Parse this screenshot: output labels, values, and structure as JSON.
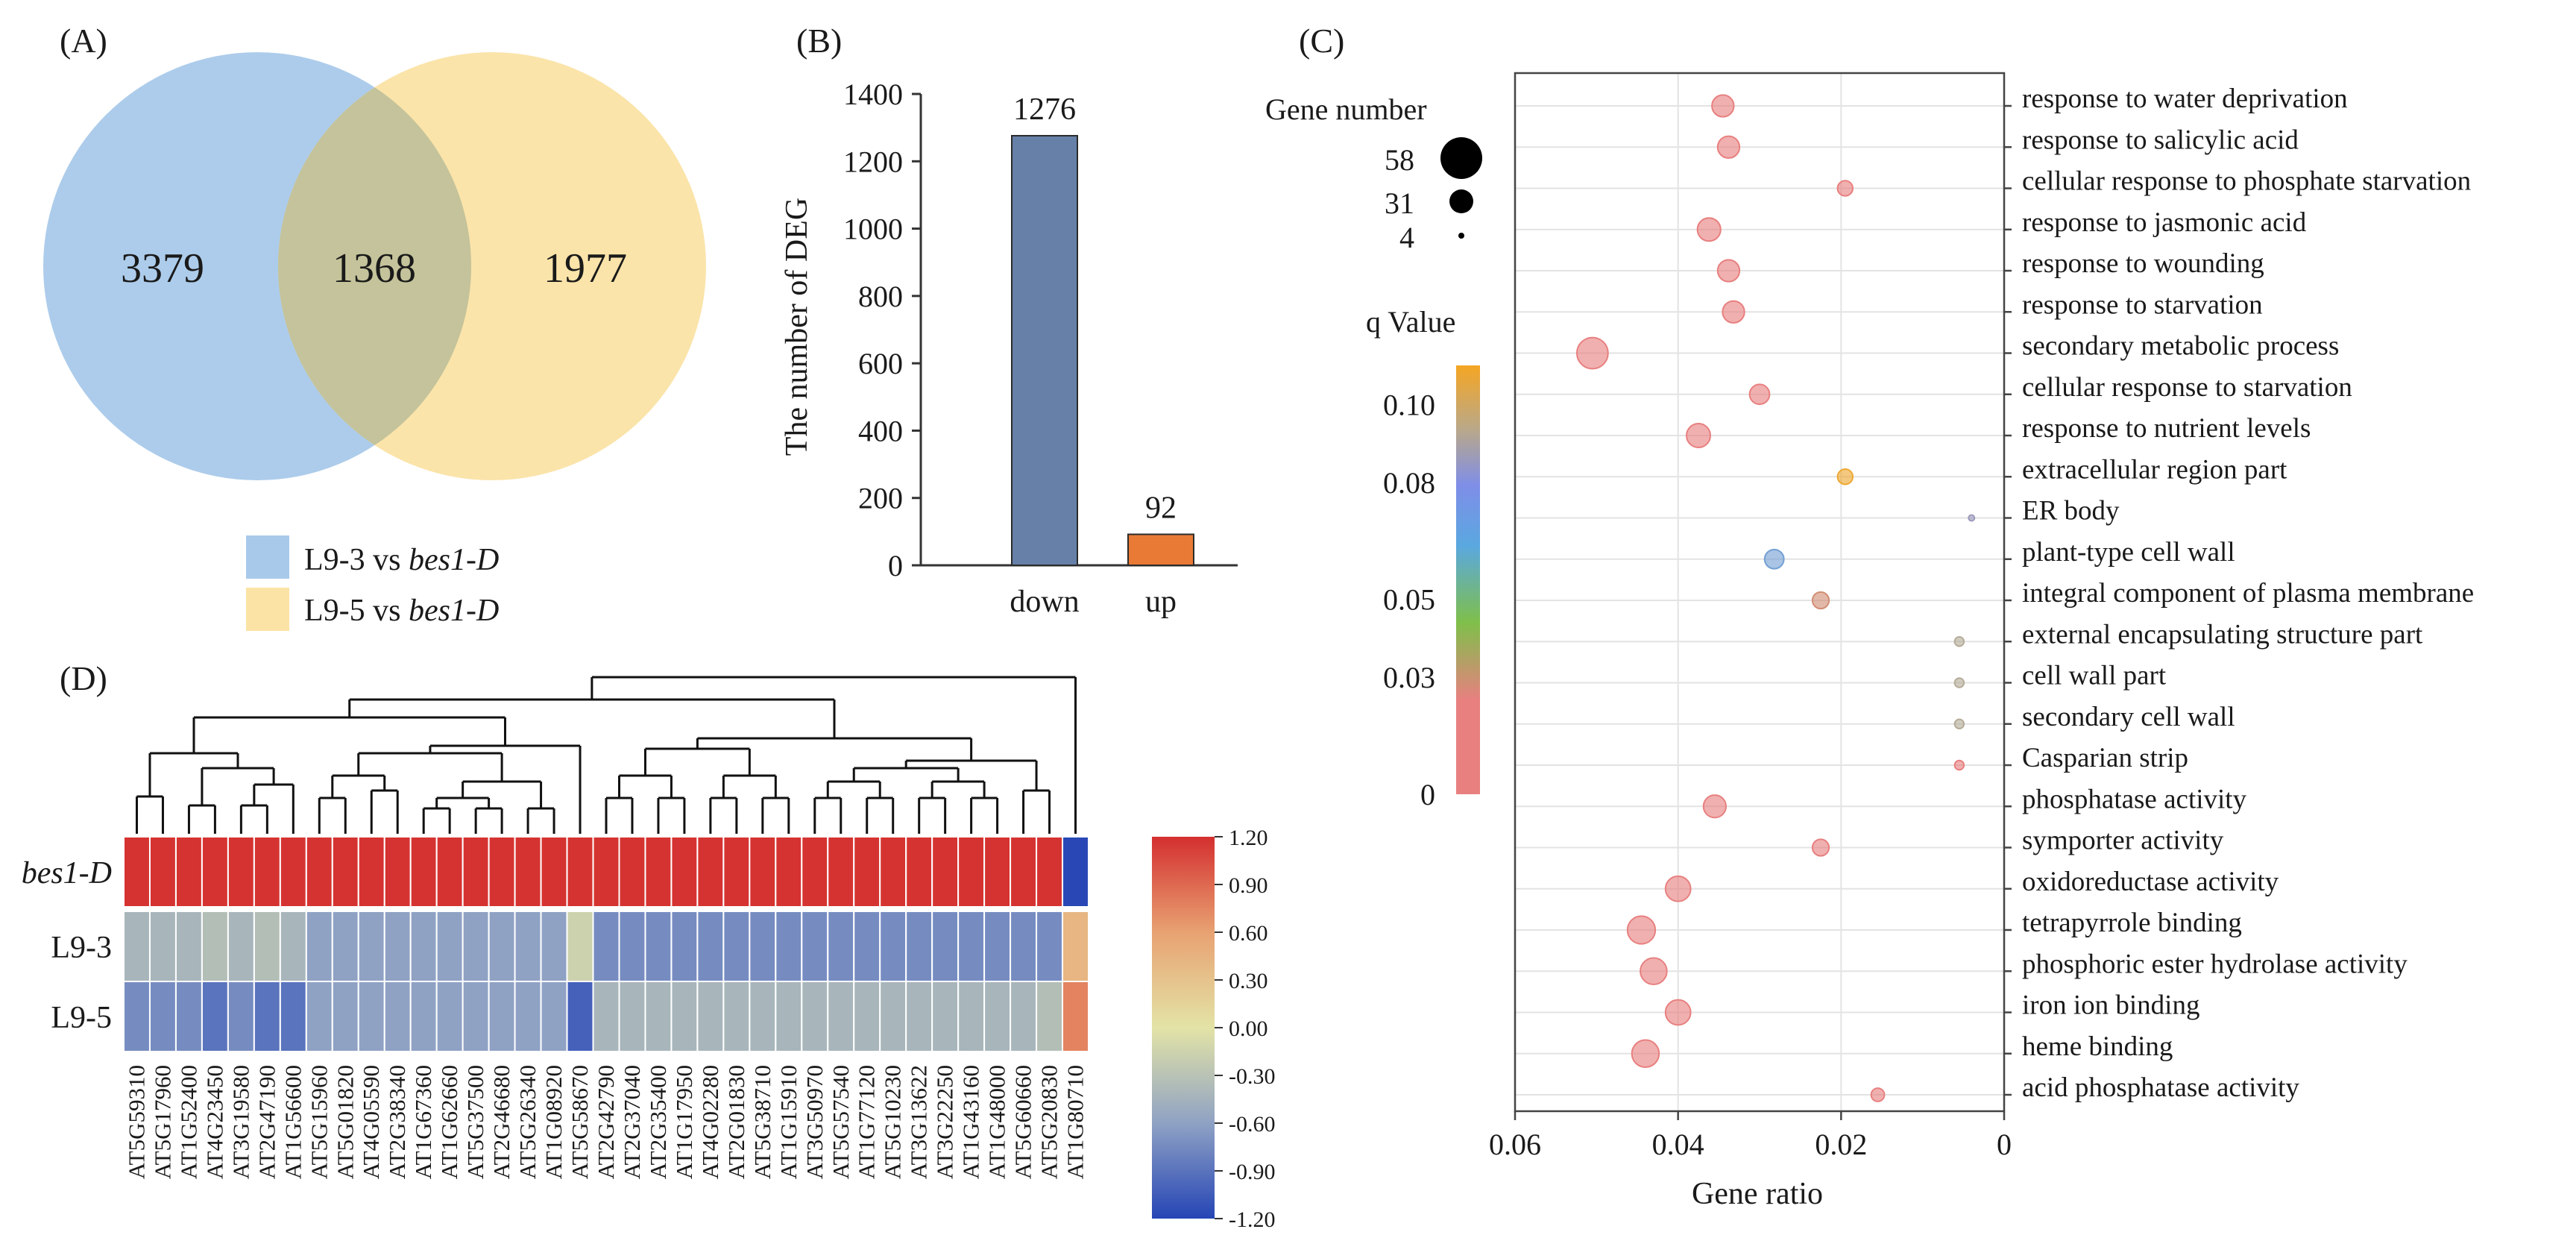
{
  "chart_data": [
    {
      "panel_label": "(A)",
      "type": "venn",
      "sets": [
        {
          "name": "L9-3 vs bes1-D",
          "label_plain": "L9-3 vs ",
          "label_italic": "bes1-D",
          "color": "#a9c9ea",
          "only": 3379
        },
        {
          "name": "L9-5 vs bes1-D",
          "label_plain": "L9-5 vs ",
          "label_italic": "bes1-D",
          "color": "#fbe3a5",
          "only": 1977
        }
      ],
      "intersection": 1368,
      "overlap_color": "#c4c39b"
    },
    {
      "panel_label": "(B)",
      "type": "bar",
      "categories": [
        "down",
        "up"
      ],
      "values": [
        1276,
        92
      ],
      "value_labels": [
        "1276",
        "92"
      ],
      "colors": [
        "#6680a8",
        "#e87a35"
      ],
      "ylabel": "The number of DEG",
      "ylim": [
        0,
        1400
      ],
      "yticks": [
        0,
        200,
        400,
        600,
        800,
        1000,
        1200,
        1400
      ]
    },
    {
      "panel_label": "(C)",
      "type": "scatter",
      "xlabel": "Gene ratio",
      "xlim": [
        0.06,
        0
      ],
      "xticks": [
        0.06,
        0.04,
        0.02,
        0
      ],
      "xtick_labels": [
        "0.06",
        "0.04",
        "0.02",
        "0"
      ],
      "size_legend_title": "Gene number",
      "size_legend": [
        58,
        31,
        4
      ],
      "size_range": [
        4,
        58
      ],
      "color_legend_title": "q Value",
      "color_ticks": [
        0.1,
        0.08,
        0.05,
        0.03,
        0
      ],
      "color_tick_labels": [
        "0.10",
        "0.08",
        "0.05",
        "0.03",
        "0"
      ],
      "terms": [
        {
          "term": "response to water deprivation",
          "ratio": 0.0345,
          "count": 28,
          "q": 0.0
        },
        {
          "term": "response to salicylic acid",
          "ratio": 0.0338,
          "count": 28,
          "q": 0.0
        },
        {
          "term": "cellular response to phosphate starvation",
          "ratio": 0.0195,
          "count": 18,
          "q": 0.0
        },
        {
          "term": "response to jasmonic acid",
          "ratio": 0.0362,
          "count": 30,
          "q": 0.0
        },
        {
          "term": "response to wounding",
          "ratio": 0.0338,
          "count": 28,
          "q": 0.0
        },
        {
          "term": "response to starvation",
          "ratio": 0.0332,
          "count": 28,
          "q": 0.0
        },
        {
          "term": "secondary metabolic process",
          "ratio": 0.0505,
          "count": 42,
          "q": 0.0
        },
        {
          "term": "cellular response to starvation",
          "ratio": 0.03,
          "count": 25,
          "q": 0.0
        },
        {
          "term": "response to nutrient levels",
          "ratio": 0.0375,
          "count": 31,
          "q": 0.0
        },
        {
          "term": "extracellular region part",
          "ratio": 0.0195,
          "count": 18,
          "q": 0.098
        },
        {
          "term": "ER body",
          "ratio": 0.004,
          "count": 4,
          "q": 0.074
        },
        {
          "term": "plant-type cell wall",
          "ratio": 0.0282,
          "count": 24,
          "q": 0.064
        },
        {
          "term": "integral component of plasma membrane",
          "ratio": 0.0225,
          "count": 20,
          "q": 0.026
        },
        {
          "term": "external encapsulating structure part",
          "ratio": 0.0055,
          "count": 9,
          "q": 0.082
        },
        {
          "term": "cell wall part",
          "ratio": 0.0055,
          "count": 9,
          "q": 0.082
        },
        {
          "term": "secondary cell wall",
          "ratio": 0.0055,
          "count": 9,
          "q": 0.082
        },
        {
          "term": "Casparian strip",
          "ratio": 0.0055,
          "count": 9,
          "q": 0.0
        },
        {
          "term": "phosphatase activity",
          "ratio": 0.0355,
          "count": 29,
          "q": 0.0
        },
        {
          "term": "symporter activity",
          "ratio": 0.0225,
          "count": 20,
          "q": 0.0
        },
        {
          "term": "oxidoreductase activity",
          "ratio": 0.04,
          "count": 33,
          "q": 0.0
        },
        {
          "term": "tetrapyrrole binding",
          "ratio": 0.0445,
          "count": 37,
          "q": 0.0
        },
        {
          "term": "phosphoric ester hydrolase activity",
          "ratio": 0.043,
          "count": 35,
          "q": 0.0
        },
        {
          "term": "iron ion binding",
          "ratio": 0.04,
          "count": 33,
          "q": 0.0
        },
        {
          "term": "heme binding",
          "ratio": 0.044,
          "count": 36,
          "q": 0.0
        },
        {
          "term": "acid phosphatase activity",
          "ratio": 0.0155,
          "count": 15,
          "q": 0.0
        }
      ]
    },
    {
      "panel_label": "(D)",
      "type": "heatmap",
      "rows": [
        {
          "label": "bes1-D",
          "italic": true
        },
        {
          "label": "L9-3",
          "italic": false
        },
        {
          "label": "L9-5",
          "italic": false
        }
      ],
      "columns": [
        "AT5G59310",
        "AT5G17960",
        "AT1G52400",
        "AT4G23450",
        "AT3G19580",
        "AT2G47190",
        "AT1G56600",
        "AT5G15960",
        "AT5G01820",
        "AT4G05590",
        "AT2G38340",
        "AT1G67360",
        "AT1G62660",
        "AT5G37500",
        "AT2G46680",
        "AT5G26340",
        "AT1G08920",
        "AT5G58670",
        "AT2G42790",
        "AT2G37040",
        "AT2G35400",
        "AT1G17950",
        "AT4G02280",
        "AT2G01830",
        "AT5G38710",
        "AT1G15910",
        "AT3G50970",
        "AT5G57540",
        "AT1G77120",
        "AT5G10230",
        "AT3G13622",
        "AT3G22250",
        "AT1G43160",
        "AT1G48000",
        "AT5G60660",
        "AT5G20830",
        "AT1G80710"
      ],
      "values": [
        [
          1.18,
          1.18,
          1.18,
          1.18,
          1.18,
          1.18,
          1.18,
          1.18,
          1.18,
          1.18,
          1.18,
          1.18,
          1.18,
          1.18,
          1.18,
          1.18,
          1.18,
          1.18,
          1.18,
          1.18,
          1.18,
          1.18,
          1.18,
          1.18,
          1.18,
          1.18,
          1.18,
          1.18,
          1.18,
          1.18,
          1.18,
          1.18,
          1.18,
          1.18,
          1.18,
          1.18,
          -1.18
        ],
        [
          -0.42,
          -0.42,
          -0.42,
          -0.34,
          -0.42,
          -0.34,
          -0.42,
          -0.6,
          -0.6,
          -0.6,
          -0.6,
          -0.6,
          -0.6,
          -0.6,
          -0.6,
          -0.6,
          -0.6,
          -0.16,
          -0.74,
          -0.74,
          -0.74,
          -0.74,
          -0.74,
          -0.74,
          -0.74,
          -0.74,
          -0.74,
          -0.74,
          -0.74,
          -0.74,
          -0.74,
          -0.74,
          -0.74,
          -0.74,
          -0.74,
          -0.74,
          0.42
        ],
        [
          -0.74,
          -0.74,
          -0.74,
          -0.9,
          -0.74,
          -0.9,
          -0.9,
          -0.6,
          -0.6,
          -0.6,
          -0.6,
          -0.6,
          -0.6,
          -0.6,
          -0.6,
          -0.6,
          -0.6,
          -1.02,
          -0.42,
          -0.42,
          -0.42,
          -0.42,
          -0.42,
          -0.42,
          -0.42,
          -0.42,
          -0.42,
          -0.42,
          -0.42,
          -0.42,
          -0.42,
          -0.42,
          -0.42,
          -0.42,
          -0.42,
          -0.34,
          0.76
        ]
      ],
      "color_range": [
        -1.2,
        1.2
      ],
      "colorbar_ticks": [
        1.2,
        0.9,
        0.6,
        0.3,
        0.0,
        -0.3,
        -0.6,
        -0.9,
        -1.2
      ],
      "colorbar_tick_labels": [
        "1.20",
        "0.90",
        "0.60",
        "0.30",
        "0.00",
        "-0.30",
        "-0.60",
        "-0.90",
        "-1.20"
      ]
    }
  ]
}
